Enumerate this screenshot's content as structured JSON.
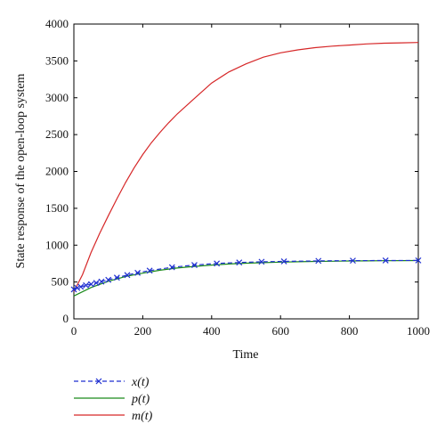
{
  "chart_data": {
    "type": "line",
    "title": "",
    "xlabel": "Time",
    "ylabel": "State response of the open-loop system",
    "xlim": [
      0,
      1000
    ],
    "ylim": [
      0,
      4000
    ],
    "xticks": [
      0,
      200,
      400,
      600,
      800,
      1000
    ],
    "yticks": [
      0,
      500,
      1000,
      1500,
      2000,
      2500,
      3000,
      3500,
      4000
    ],
    "xtick_labels": [
      "0",
      "200",
      "400",
      "600",
      "800",
      "1000"
    ],
    "ytick_labels": [
      "0",
      "500",
      "1000",
      "1500",
      "2000",
      "2500",
      "3000",
      "3500",
      "4000"
    ],
    "grid": false,
    "legend_position": "bottom-left-outside",
    "series": [
      {
        "name": "x(t)",
        "color": "#1f2fd0",
        "style": "dashed-x-marker",
        "x": [
          0,
          10,
          20,
          35,
          50,
          65,
          80,
          100,
          125,
          155,
          185,
          220,
          285,
          350,
          415,
          480,
          545,
          610,
          710,
          810,
          905,
          1000
        ],
        "y": [
          400,
          420,
          435,
          455,
          470,
          488,
          505,
          530,
          560,
          595,
          625,
          655,
          700,
          730,
          752,
          765,
          775,
          780,
          787,
          790,
          792,
          793
        ]
      },
      {
        "name": "p(t)",
        "color": "#1a8a1a",
        "style": "solid",
        "x": [
          0,
          50,
          100,
          150,
          200,
          250,
          300,
          350,
          400,
          450,
          500,
          550,
          600,
          650,
          700,
          750,
          800,
          850,
          900,
          950,
          1000
        ],
        "y": [
          310,
          425,
          510,
          575,
          620,
          660,
          690,
          712,
          730,
          745,
          755,
          763,
          770,
          775,
          779,
          782,
          785,
          787,
          789,
          790,
          791
        ]
      },
      {
        "name": "m(t)",
        "color": "#d62728",
        "style": "solid",
        "x": [
          0,
          25,
          50,
          75,
          100,
          125,
          150,
          175,
          200,
          225,
          250,
          275,
          300,
          350,
          400,
          450,
          500,
          550,
          600,
          650,
          700,
          750,
          800,
          850,
          900,
          950,
          1000
        ],
        "y": [
          370,
          600,
          900,
          1160,
          1400,
          1630,
          1850,
          2050,
          2230,
          2390,
          2530,
          2660,
          2780,
          2990,
          3200,
          3350,
          3460,
          3550,
          3610,
          3650,
          3680,
          3700,
          3715,
          3730,
          3740,
          3745,
          3750
        ]
      }
    ]
  }
}
